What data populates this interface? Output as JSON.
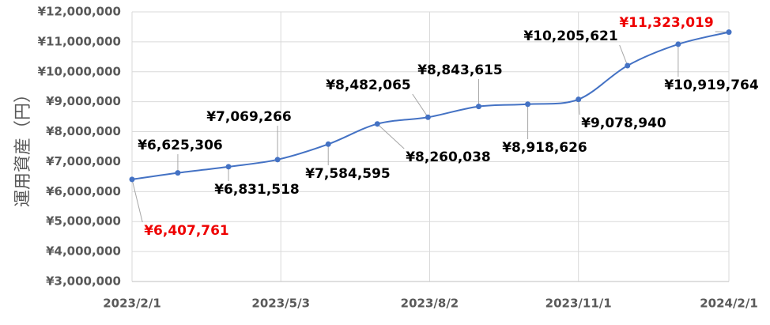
{
  "chart_data": {
    "type": "line",
    "y_label": "運用資産（円）",
    "x": [
      "2023/2/1",
      "2023/3/1",
      "2023/4/1",
      "2023/5/1",
      "2023/6/1",
      "2023/7/1",
      "2023/8/1",
      "2023/9/1",
      "2023/10/1",
      "2023/11/1",
      "2023/12/1",
      "2024/1/1",
      "2024/2/1"
    ],
    "series": [
      {
        "color": "#4472c4",
        "values": [
          6407761,
          6625306,
          6831518,
          7069266,
          7584595,
          8260038,
          8482065,
          8843615,
          8918626,
          9078940,
          10205621,
          10919764,
          11323019
        ],
        "value_labels": [
          "¥6,407,761",
          "¥6,625,306",
          "¥6,831,518",
          "¥7,069,266",
          "¥7,584,595",
          "¥8,260,038",
          "¥8,482,065",
          "¥8,843,615",
          "¥8,918,626",
          "¥9,078,940",
          "¥10,205,621",
          "¥10,919,764",
          "¥11,323,019"
        ],
        "value_label_colors": [
          "#ee0000",
          "#000000",
          "#000000",
          "#000000",
          "#000000",
          "#000000",
          "#000000",
          "#000000",
          "#000000",
          "#000000",
          "#000000",
          "#000000",
          "#ee0000"
        ]
      }
    ],
    "xlim": [
      "2023/2/1",
      "2024/2/1"
    ],
    "xticks": [
      "2023/2/1",
      "2023/5/3",
      "2023/8/2",
      "2023/11/1",
      "2024/2/1"
    ],
    "ylim": [
      3000000,
      12000000
    ],
    "yticks": [
      {
        "value": 3000000,
        "label": "¥3,000,000"
      },
      {
        "value": 4000000,
        "label": "¥4,000,000"
      },
      {
        "value": 5000000,
        "label": "¥5,000,000"
      },
      {
        "value": 6000000,
        "label": "¥6,000,000"
      },
      {
        "value": 7000000,
        "label": "¥7,000,000"
      },
      {
        "value": 8000000,
        "label": "¥8,000,000"
      },
      {
        "value": 9000000,
        "label": "¥9,000,000"
      },
      {
        "value": 10000000,
        "label": "¥10,000,000"
      },
      {
        "value": 11000000,
        "label": "¥11,000,000"
      },
      {
        "value": 12000000,
        "label": "¥12,000,000"
      }
    ],
    "grid": true
  }
}
